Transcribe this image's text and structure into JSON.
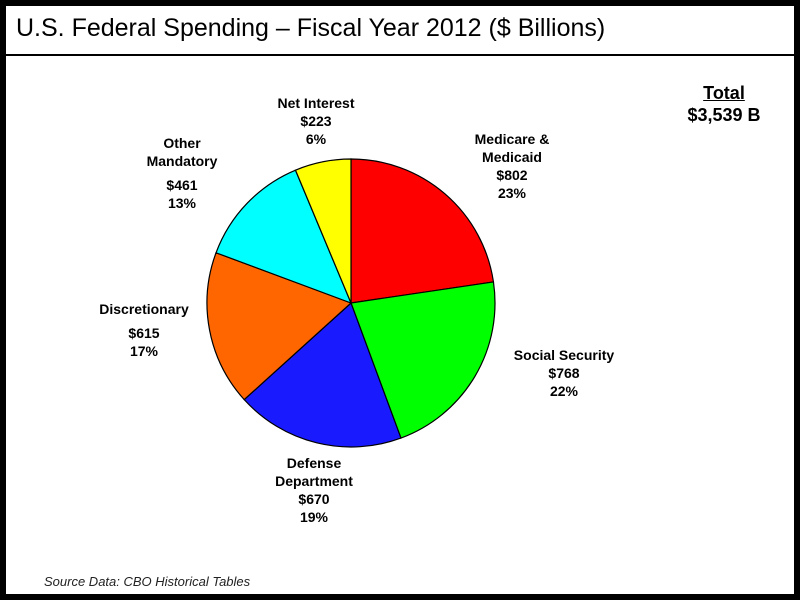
{
  "title": "U.S. Federal Spending – Fiscal Year 2012 ($ Billions)",
  "total": {
    "label": "Total",
    "value": "$3,539 B"
  },
  "source": "Source Data: CBO Historical Tables",
  "chart_data": {
    "type": "pie",
    "title": "U.S. Federal Spending – Fiscal Year 2012 ($ Billions)",
    "unit": "$ Billions",
    "total": 3539,
    "legend": "none (direct labels)",
    "slices": [
      {
        "name_lines": [
          "Medicare &",
          "Medicaid"
        ],
        "value_label": "$802",
        "pct_label": "23%",
        "value": 802,
        "color": "#ff0000"
      },
      {
        "name_lines": [
          "Social Security"
        ],
        "value_label": "$768",
        "pct_label": "22%",
        "value": 768,
        "color": "#00ff00"
      },
      {
        "name_lines": [
          "Defense",
          "Department"
        ],
        "value_label": "$670",
        "pct_label": "19%",
        "value": 670,
        "color": "#1a1aff"
      },
      {
        "name_lines": [
          "Discretionary"
        ],
        "value_label": "$615",
        "pct_label": "17%",
        "value": 615,
        "color": "#ff6600"
      },
      {
        "name_lines": [
          "Other",
          "Mandatory"
        ],
        "value_label": "$461",
        "pct_label": "13%",
        "value": 461,
        "color": "#00ffff"
      },
      {
        "name_lines": [
          "Net Interest"
        ],
        "value_label": "$223",
        "pct_label": "6%",
        "value": 223,
        "color": "#ffff00"
      }
    ]
  }
}
